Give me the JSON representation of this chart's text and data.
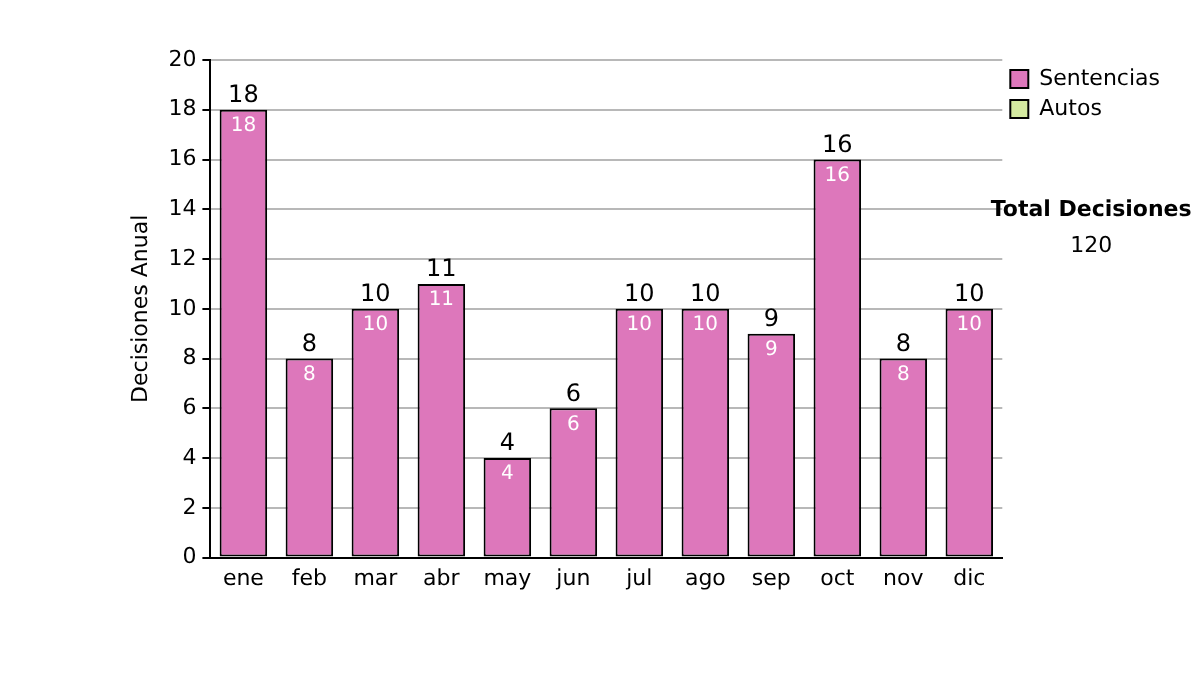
{
  "chart_data": {
    "type": "bar",
    "ylabel": "Decisiones Anual",
    "categories": [
      "ene",
      "feb",
      "mar",
      "abr",
      "may",
      "jun",
      "jul",
      "ago",
      "sep",
      "oct",
      "nov",
      "dic"
    ],
    "series": [
      {
        "name": "Sentencias",
        "color": "#dd77bb",
        "values": [
          18,
          8,
          10,
          11,
          4,
          6,
          10,
          10,
          9,
          16,
          8,
          10
        ],
        "value_labels": [
          "18",
          "8",
          "10",
          "11",
          "4",
          "6",
          "10",
          "10",
          "9",
          "16",
          "8",
          "10"
        ]
      },
      {
        "name": "Autos",
        "color": "#d4eaa0",
        "values": [
          0,
          0,
          0,
          0,
          0,
          0,
          0,
          0,
          0,
          0,
          0,
          0
        ]
      }
    ],
    "stacked": true,
    "totals": [
      "18",
      "8",
      "10",
      "11",
      "4",
      "6",
      "10",
      "10",
      "9",
      "16",
      "8",
      "10"
    ],
    "ylim": [
      0,
      20
    ],
    "yticks": [
      0,
      2,
      4,
      6,
      8,
      10,
      12,
      14,
      16,
      18,
      20
    ],
    "grid": "y",
    "legend": "right",
    "annotations": [
      "Total Decisiones",
      "120"
    ]
  }
}
